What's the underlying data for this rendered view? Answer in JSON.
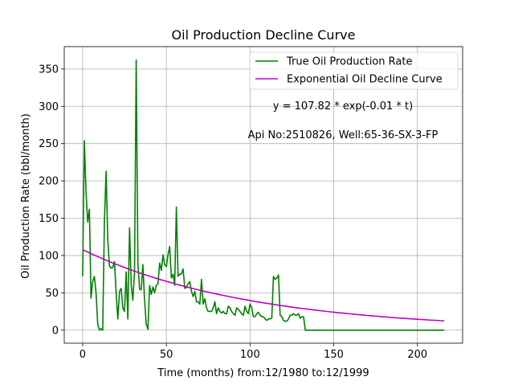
{
  "chart_data": {
    "type": "line",
    "title": "Oil Production Decline Curve",
    "xlabel": "Time (months) from:12/1980 to:12/1999",
    "ylabel": "Oil Production Rate (bbl/month)",
    "xlim": [
      -11,
      227
    ],
    "ylim": [
      -17.5,
      380
    ],
    "x_ticks": [
      0,
      50,
      100,
      150,
      200
    ],
    "y_ticks": [
      0,
      50,
      100,
      150,
      200,
      250,
      300,
      350
    ],
    "grid": true,
    "legend_position": "top-right",
    "annotations": [
      "y = 107.82 * exp(-0.01 * t)",
      "Api No:2510826, Well:65-36-SX-3-FP"
    ],
    "series": [
      {
        "name": "True Oil Production Rate",
        "color": "#008000",
        "kind": "observed",
        "points": [
          [
            0,
            72
          ],
          [
            1,
            254
          ],
          [
            2,
            185
          ],
          [
            3,
            145
          ],
          [
            4,
            162
          ],
          [
            5,
            43
          ],
          [
            6,
            65
          ],
          [
            7,
            72
          ],
          [
            8,
            50
          ],
          [
            9,
            8
          ],
          [
            10,
            0
          ],
          [
            11,
            2
          ],
          [
            12,
            0
          ],
          [
            13,
            145
          ],
          [
            14,
            213
          ],
          [
            15,
            121
          ],
          [
            16,
            86
          ],
          [
            17,
            83
          ],
          [
            18,
            84
          ],
          [
            19,
            92
          ],
          [
            20,
            50
          ],
          [
            21,
            15
          ],
          [
            22,
            52
          ],
          [
            23,
            56
          ],
          [
            24,
            30
          ],
          [
            25,
            25
          ],
          [
            26,
            78
          ],
          [
            27,
            15
          ],
          [
            28,
            137
          ],
          [
            29,
            60
          ],
          [
            30,
            40
          ],
          [
            31,
            78
          ],
          [
            32,
            362
          ],
          [
            33,
            90
          ],
          [
            34,
            55
          ],
          [
            35,
            54
          ],
          [
            36,
            88
          ],
          [
            37,
            40
          ],
          [
            38,
            8
          ],
          [
            39,
            1
          ],
          [
            40,
            60
          ],
          [
            41,
            48
          ],
          [
            42,
            58
          ],
          [
            43,
            50
          ],
          [
            44,
            60
          ],
          [
            45,
            62
          ],
          [
            46,
            90
          ],
          [
            47,
            80
          ],
          [
            48,
            101
          ],
          [
            49,
            88
          ],
          [
            50,
            85
          ],
          [
            51,
            101
          ],
          [
            52,
            112
          ],
          [
            53,
            70
          ],
          [
            54,
            75
          ],
          [
            55,
            60
          ],
          [
            56,
            165
          ],
          [
            57,
            72
          ],
          [
            58,
            75
          ],
          [
            59,
            75
          ],
          [
            60,
            82
          ],
          [
            61,
            56
          ],
          [
            62,
            57
          ],
          [
            63,
            62
          ],
          [
            64,
            65
          ],
          [
            65,
            52
          ],
          [
            66,
            45
          ],
          [
            67,
            52
          ],
          [
            68,
            38
          ],
          [
            69,
            38
          ],
          [
            70,
            35
          ],
          [
            71,
            68
          ],
          [
            72,
            35
          ],
          [
            73,
            42
          ],
          [
            74,
            30
          ],
          [
            75,
            25
          ],
          [
            76,
            25
          ],
          [
            77,
            25
          ],
          [
            78,
            30
          ],
          [
            79,
            38
          ],
          [
            80,
            22
          ],
          [
            81,
            30
          ],
          [
            82,
            25
          ],
          [
            83,
            23
          ],
          [
            84,
            25
          ],
          [
            85,
            22
          ],
          [
            86,
            22
          ],
          [
            87,
            32
          ],
          [
            88,
            30
          ],
          [
            89,
            25
          ],
          [
            90,
            22
          ],
          [
            91,
            20
          ],
          [
            92,
            30
          ],
          [
            93,
            28
          ],
          [
            94,
            25
          ],
          [
            95,
            22
          ],
          [
            96,
            20
          ],
          [
            97,
            32
          ],
          [
            98,
            25
          ],
          [
            99,
            22
          ],
          [
            100,
            35
          ],
          [
            101,
            30
          ],
          [
            102,
            18
          ],
          [
            103,
            18
          ],
          [
            104,
            22
          ],
          [
            105,
            24
          ],
          [
            106,
            20
          ],
          [
            107,
            18
          ],
          [
            108,
            18
          ],
          [
            109,
            15
          ],
          [
            110,
            13
          ],
          [
            111,
            15
          ],
          [
            112,
            15
          ],
          [
            113,
            16
          ],
          [
            114,
            72
          ],
          [
            115,
            68
          ],
          [
            116,
            70
          ],
          [
            117,
            74
          ],
          [
            118,
            20
          ],
          [
            119,
            18
          ],
          [
            120,
            13
          ],
          [
            121,
            12
          ],
          [
            122,
            12
          ],
          [
            123,
            15
          ],
          [
            124,
            20
          ],
          [
            125,
            20
          ],
          [
            126,
            22
          ],
          [
            127,
            20
          ],
          [
            128,
            20
          ],
          [
            129,
            22
          ],
          [
            130,
            16
          ],
          [
            131,
            18
          ],
          [
            132,
            18
          ],
          [
            133,
            0
          ],
          [
            140,
            0
          ],
          [
            160,
            0
          ],
          [
            180,
            0
          ],
          [
            200,
            0
          ],
          [
            216,
            0
          ]
        ]
      },
      {
        "name": "Exponential Oil Decline Curve",
        "color": "#bf00bf",
        "kind": "fit",
        "formula": {
          "a": 107.82,
          "b": 0.01
        },
        "points": [
          [
            0,
            107.8
          ],
          [
            24,
            89.7
          ],
          [
            48,
            74.5
          ],
          [
            72,
            62.0
          ],
          [
            96,
            51.5
          ],
          [
            120,
            42.8
          ],
          [
            144,
            35.6
          ],
          [
            168,
            29.6
          ],
          [
            192,
            24.6
          ],
          [
            216,
            20.5
          ]
        ]
      }
    ]
  }
}
